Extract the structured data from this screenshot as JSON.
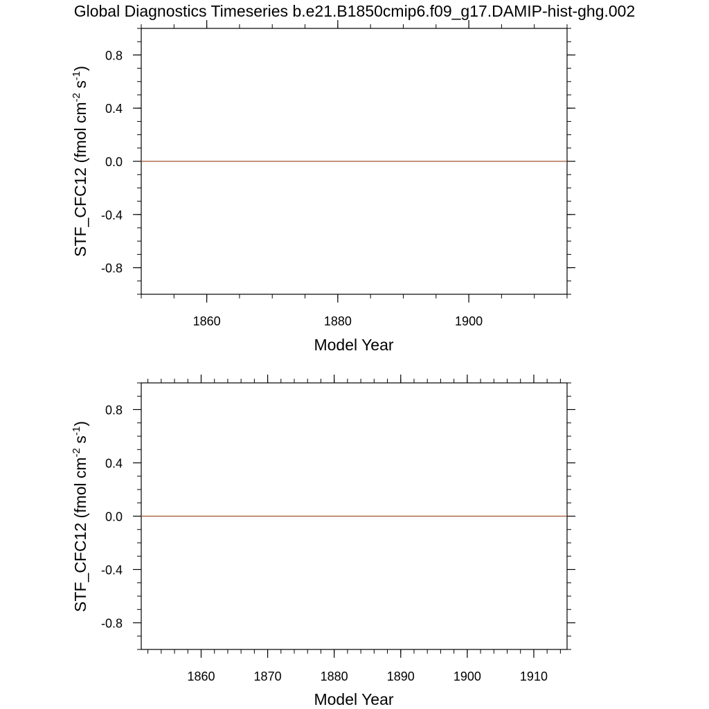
{
  "title": "Global Diagnostics Timeseries b.e21.B1850cmip6.f09_g17.DAMIP-hist-ghg.002",
  "colors": {
    "line": "#a0522d",
    "axis": "#000000",
    "background": "#ffffff"
  },
  "chart_data": [
    {
      "type": "line",
      "ylabel_base": "STF_CFC12 (fmol cm",
      "ylabel_mid": " s",
      "ylabel_end": ")",
      "ylabel_sup1": "-2",
      "ylabel_sup2": "-1",
      "xlabel": "Model Year",
      "xlim": [
        1850,
        1915
      ],
      "ylim": [
        -1.0,
        1.0
      ],
      "x_major_ticks": [
        1860,
        1880,
        1900
      ],
      "x_minor_step": 5,
      "y_major_ticks": [
        -0.8,
        -0.4,
        0.0,
        0.4,
        0.8
      ],
      "y_tick_labels": [
        "-0.8",
        "-0.4",
        "0.0",
        "0.4",
        "0.8"
      ],
      "y_minor_step": 0.1,
      "grid": false,
      "series": [
        {
          "x": [
            1850,
            1915
          ],
          "y": [
            0.0,
            0.0
          ]
        }
      ]
    },
    {
      "type": "line",
      "ylabel_base": "STF_CFC12 (fmol cm",
      "ylabel_mid": " s",
      "ylabel_end": ")",
      "ylabel_sup1": "-2",
      "ylabel_sup2": "-1",
      "xlabel": "Model Year",
      "xlim": [
        1851,
        1915
      ],
      "ylim": [
        -1.0,
        1.0
      ],
      "x_major_ticks": [
        1860,
        1870,
        1880,
        1890,
        1900,
        1910
      ],
      "x_minor_step": 2,
      "y_major_ticks": [
        -0.8,
        -0.4,
        0.0,
        0.4,
        0.8
      ],
      "y_tick_labels": [
        "-0.8",
        "-0.4",
        "0.0",
        "0.4",
        "0.8"
      ],
      "y_minor_step": 0.1,
      "grid": false,
      "series": [
        {
          "x": [
            1851,
            1915
          ],
          "y": [
            0.0,
            0.0
          ]
        }
      ]
    }
  ]
}
